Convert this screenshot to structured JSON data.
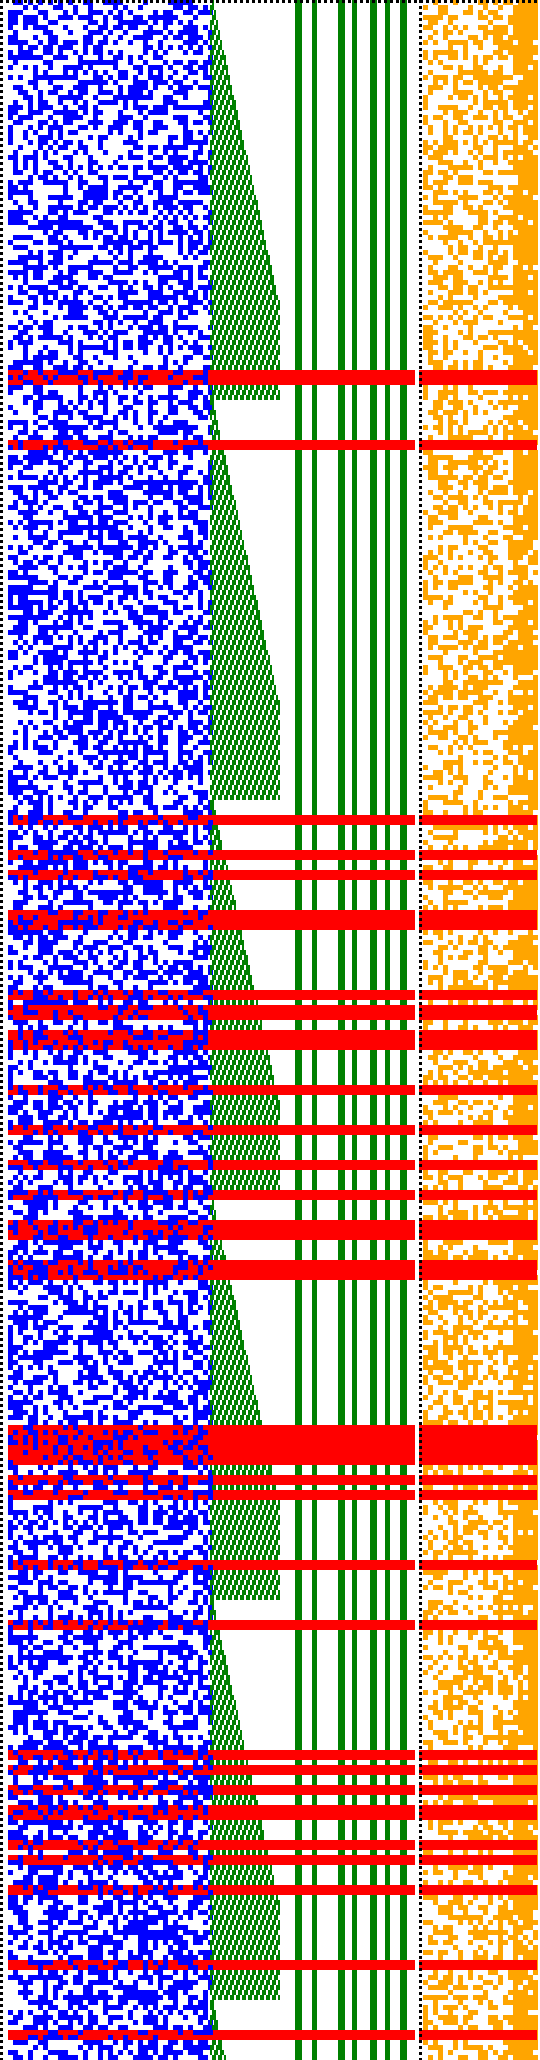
{
  "colors": {
    "background": "#ffffff",
    "border": "#000000",
    "left_panel": "#0000ff",
    "middle_panel": "#008000",
    "right_panel": "#ffa500",
    "highlight_row": "#ff0000"
  }
}
